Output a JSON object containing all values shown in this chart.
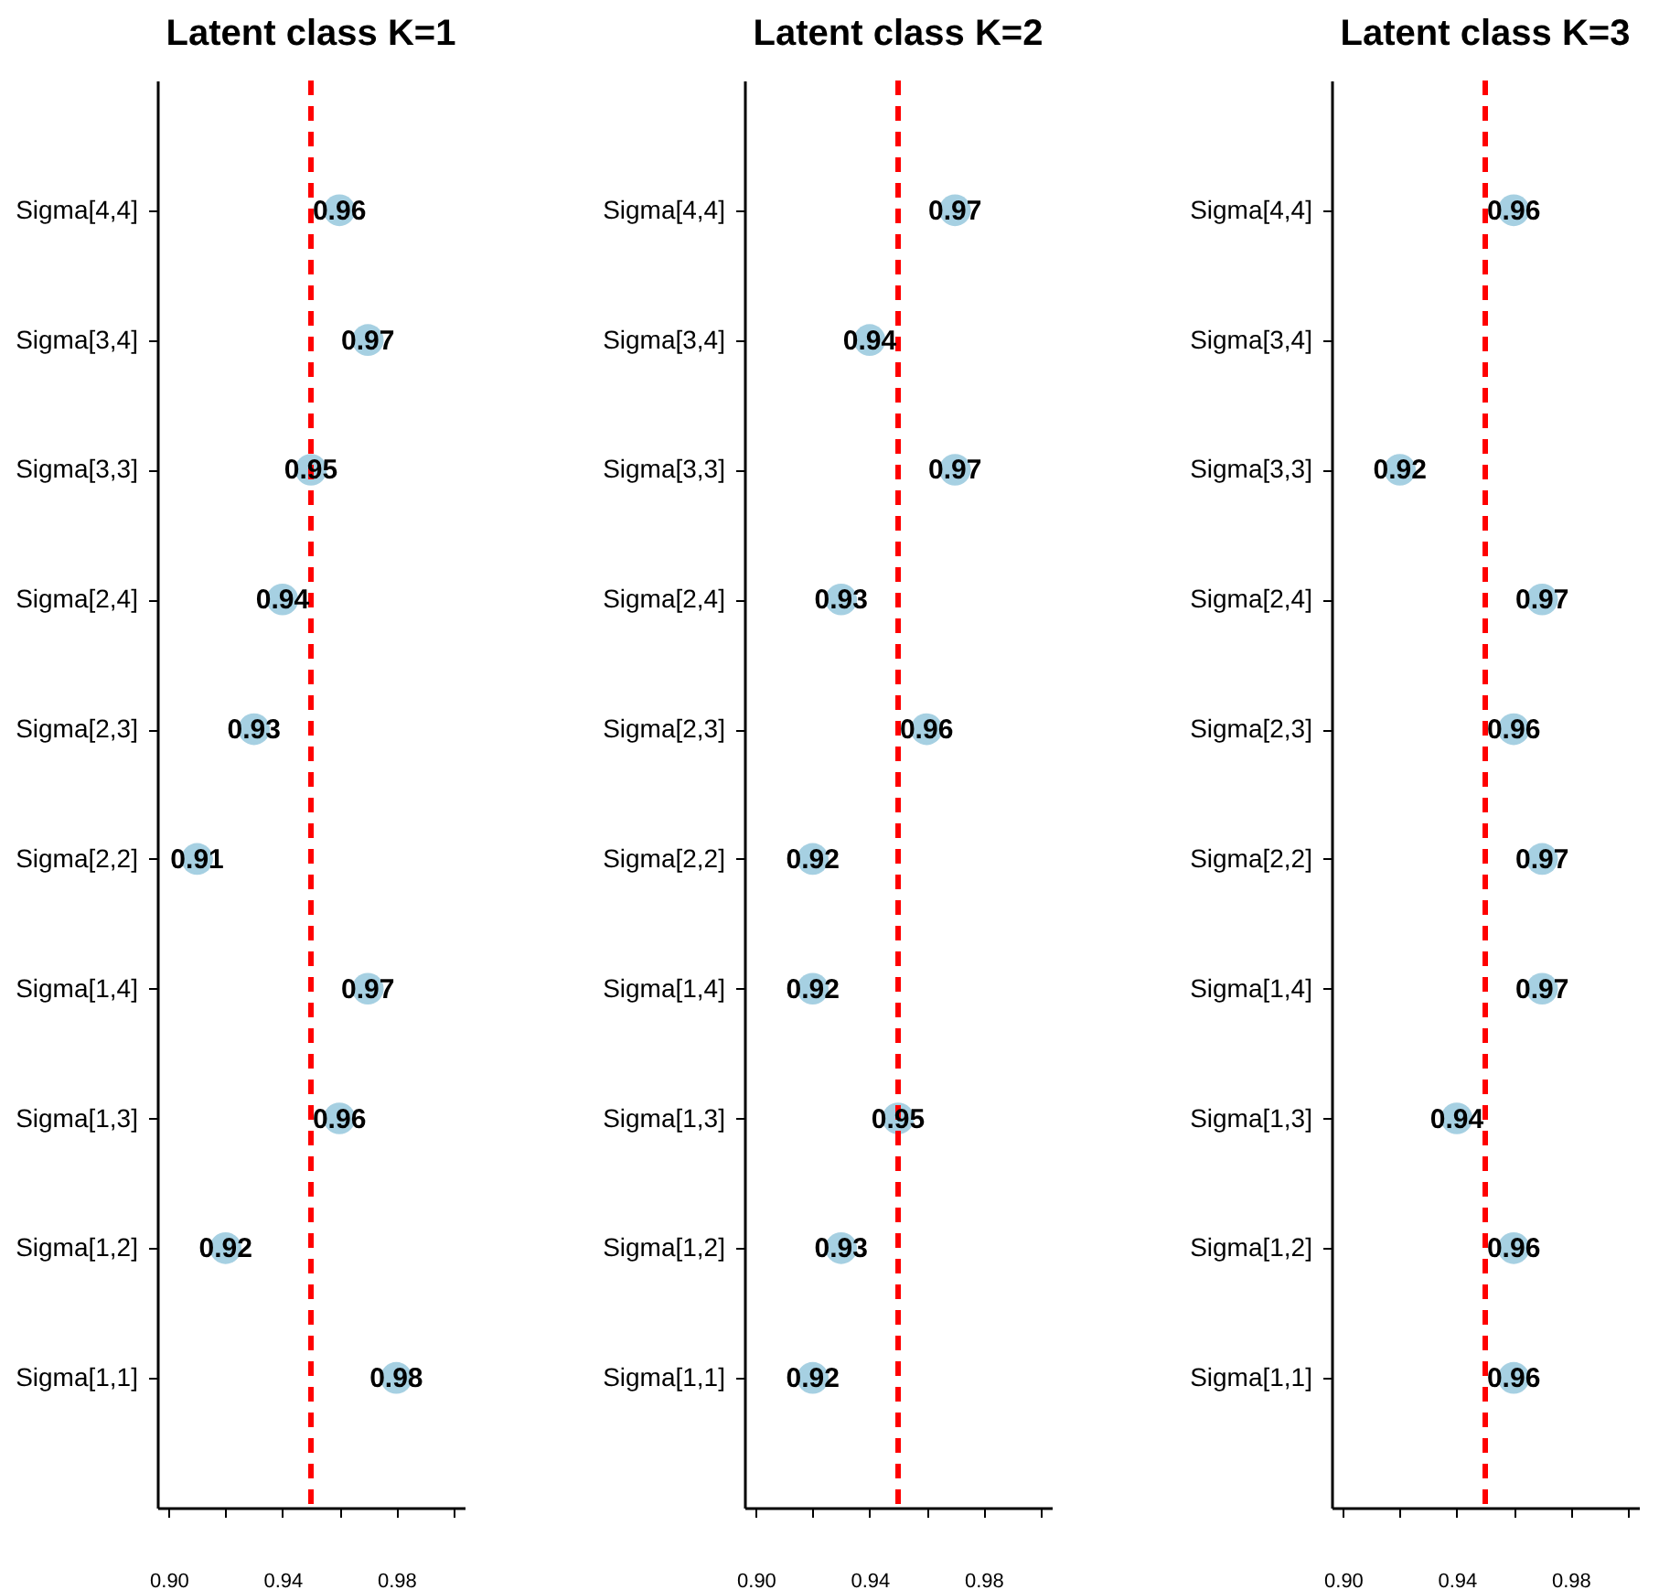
{
  "chart_data": [
    {
      "type": "scatter",
      "title": "Latent class K=1",
      "orientation": "horizontal",
      "marker": "circle",
      "data_labels": true,
      "categories": [
        "Sigma[4,4]",
        "Sigma[3,4]",
        "Sigma[3,3]",
        "Sigma[2,4]",
        "Sigma[2,3]",
        "Sigma[2,2]",
        "Sigma[1,4]",
        "Sigma[1,3]",
        "Sigma[1,2]",
        "Sigma[1,1]"
      ],
      "series": [
        {
          "color": "#a6d0e2",
          "values": [
            0.96,
            0.97,
            0.95,
            0.94,
            0.93,
            0.91,
            0.97,
            0.96,
            0.92,
            0.98
          ]
        }
      ],
      "xlim": [
        0.896,
        1.004
      ],
      "xticks": [
        {
          "value": 0.9,
          "label": "0.90"
        },
        {
          "value": 0.92,
          "label": null
        },
        {
          "value": 0.94,
          "label": "0.94"
        },
        {
          "value": 0.96,
          "label": null
        },
        {
          "value": 0.98,
          "label": "0.98"
        },
        {
          "value": 1.0,
          "label": null
        }
      ],
      "ref_lines": [
        {
          "axis": "x",
          "value": 0.95,
          "color": "#ff0000",
          "line_style": "dashed"
        }
      ]
    },
    {
      "type": "scatter",
      "title": "Latent class K=2",
      "orientation": "horizontal",
      "marker": "circle",
      "data_labels": true,
      "categories": [
        "Sigma[4,4]",
        "Sigma[3,4]",
        "Sigma[3,3]",
        "Sigma[2,4]",
        "Sigma[2,3]",
        "Sigma[2,2]",
        "Sigma[1,4]",
        "Sigma[1,3]",
        "Sigma[1,2]",
        "Sigma[1,1]"
      ],
      "series": [
        {
          "color": "#a6d0e2",
          "values": [
            0.97,
            0.94,
            0.97,
            0.93,
            0.96,
            0.92,
            0.92,
            0.95,
            0.93,
            0.92
          ]
        }
      ],
      "xlim": [
        0.896,
        1.004
      ],
      "xticks": [
        {
          "value": 0.9,
          "label": "0.90"
        },
        {
          "value": 0.92,
          "label": null
        },
        {
          "value": 0.94,
          "label": "0.94"
        },
        {
          "value": 0.96,
          "label": null
        },
        {
          "value": 0.98,
          "label": "0.98"
        },
        {
          "value": 1.0,
          "label": null
        }
      ],
      "ref_lines": [
        {
          "axis": "x",
          "value": 0.95,
          "color": "#ff0000",
          "line_style": "dashed"
        }
      ]
    },
    {
      "type": "scatter",
      "title": "Latent class K=3",
      "orientation": "horizontal",
      "marker": "circle",
      "data_labels": true,
      "categories": [
        "Sigma[4,4]",
        "Sigma[3,4]",
        "Sigma[3,3]",
        "Sigma[2,4]",
        "Sigma[2,3]",
        "Sigma[2,2]",
        "Sigma[1,4]",
        "Sigma[1,3]",
        "Sigma[1,2]",
        "Sigma[1,1]"
      ],
      "series": [
        {
          "color": "#a6d0e2",
          "values": [
            0.96,
            null,
            0.92,
            0.97,
            0.96,
            0.97,
            0.97,
            0.94,
            0.96,
            0.96
          ]
        }
      ],
      "xlim": [
        0.896,
        1.004
      ],
      "xticks": [
        {
          "value": 0.9,
          "label": "0.90"
        },
        {
          "value": 0.92,
          "label": null
        },
        {
          "value": 0.94,
          "label": "0.94"
        },
        {
          "value": 0.96,
          "label": null
        },
        {
          "value": 0.98,
          "label": "0.98"
        },
        {
          "value": 1.0,
          "label": null
        }
      ],
      "ref_lines": [
        {
          "axis": "x",
          "value": 0.95,
          "color": "#ff0000",
          "line_style": "dashed"
        }
      ]
    }
  ]
}
